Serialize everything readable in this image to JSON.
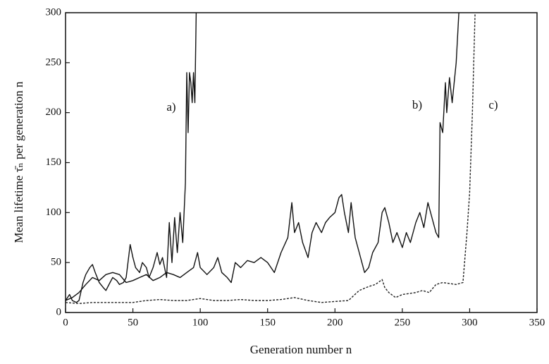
{
  "chart_data": {
    "type": "line",
    "xlabel": "Generation number  n",
    "ylabel": "Mean lifetime τ̄ₙ per generation  n",
    "xlim": [
      0,
      350
    ],
    "xticks": [
      0,
      50,
      100,
      150,
      200,
      250,
      300,
      350
    ],
    "ylim": [
      0,
      300
    ],
    "yticks": [
      0,
      50,
      100,
      150,
      200,
      250,
      300
    ],
    "series": [
      {
        "name": "a)",
        "color": "#111111",
        "dash": false,
        "x": [
          0,
          3,
          5,
          8,
          10,
          13,
          15,
          18,
          20,
          22,
          25,
          28,
          30,
          33,
          35,
          38,
          40,
          43,
          45,
          48,
          50,
          52,
          55,
          57,
          60,
          62,
          65,
          68,
          70,
          72,
          75,
          77,
          79,
          81,
          83,
          85,
          87,
          89,
          90,
          91,
          92,
          93,
          94,
          95,
          96,
          97
        ],
        "values": [
          12,
          18,
          12,
          10,
          12,
          30,
          38,
          45,
          48,
          40,
          30,
          25,
          22,
          30,
          35,
          32,
          28,
          30,
          35,
          68,
          55,
          45,
          40,
          50,
          45,
          35,
          45,
          60,
          48,
          55,
          35,
          90,
          50,
          95,
          60,
          100,
          70,
          130,
          240,
          180,
          240,
          230,
          210,
          240,
          210,
          300
        ]
      },
      {
        "name": "b)",
        "color": "#111111",
        "dash": false,
        "x": [
          0,
          5,
          10,
          15,
          20,
          25,
          30,
          35,
          40,
          45,
          50,
          55,
          60,
          65,
          70,
          75,
          80,
          85,
          90,
          95,
          98,
          100,
          105,
          110,
          113,
          116,
          120,
          123,
          126,
          130,
          135,
          140,
          145,
          150,
          155,
          160,
          165,
          168,
          170,
          173,
          176,
          180,
          183,
          186,
          190,
          193,
          196,
          200,
          203,
          205,
          207,
          210,
          212,
          215,
          218,
          220,
          222,
          225,
          228,
          232,
          235,
          237,
          240,
          243,
          246,
          250,
          253,
          256,
          260,
          263,
          266,
          269,
          272,
          275,
          277,
          278,
          280,
          282,
          283,
          285,
          287,
          290,
          292
        ],
        "values": [
          12,
          15,
          20,
          28,
          35,
          32,
          38,
          40,
          38,
          30,
          32,
          35,
          38,
          32,
          35,
          40,
          38,
          35,
          40,
          45,
          60,
          45,
          38,
          45,
          55,
          40,
          35,
          30,
          50,
          45,
          52,
          50,
          55,
          50,
          40,
          60,
          75,
          110,
          80,
          90,
          70,
          55,
          80,
          90,
          80,
          90,
          95,
          100,
          115,
          118,
          100,
          80,
          110,
          75,
          60,
          50,
          40,
          45,
          60,
          70,
          100,
          105,
          90,
          70,
          80,
          65,
          80,
          70,
          90,
          100,
          85,
          110,
          95,
          80,
          75,
          190,
          180,
          230,
          200,
          235,
          210,
          250,
          300
        ]
      },
      {
        "name": "c)",
        "color": "#222222",
        "dash": true,
        "x": [
          0,
          10,
          20,
          30,
          40,
          50,
          60,
          70,
          80,
          90,
          100,
          110,
          120,
          130,
          140,
          150,
          160,
          170,
          180,
          190,
          200,
          210,
          218,
          225,
          230,
          235,
          237,
          240,
          245,
          250,
          260,
          265,
          270,
          275,
          280,
          290,
          295,
          298,
          300,
          302,
          304
        ],
        "values": [
          10,
          9,
          10,
          10,
          10,
          10,
          12,
          13,
          12,
          12,
          14,
          12,
          12,
          13,
          12,
          12,
          13,
          15,
          12,
          10,
          11,
          12,
          22,
          26,
          28,
          33,
          25,
          20,
          15,
          18,
          20,
          22,
          20,
          28,
          30,
          28,
          30,
          80,
          120,
          200,
          300
        ]
      }
    ]
  }
}
